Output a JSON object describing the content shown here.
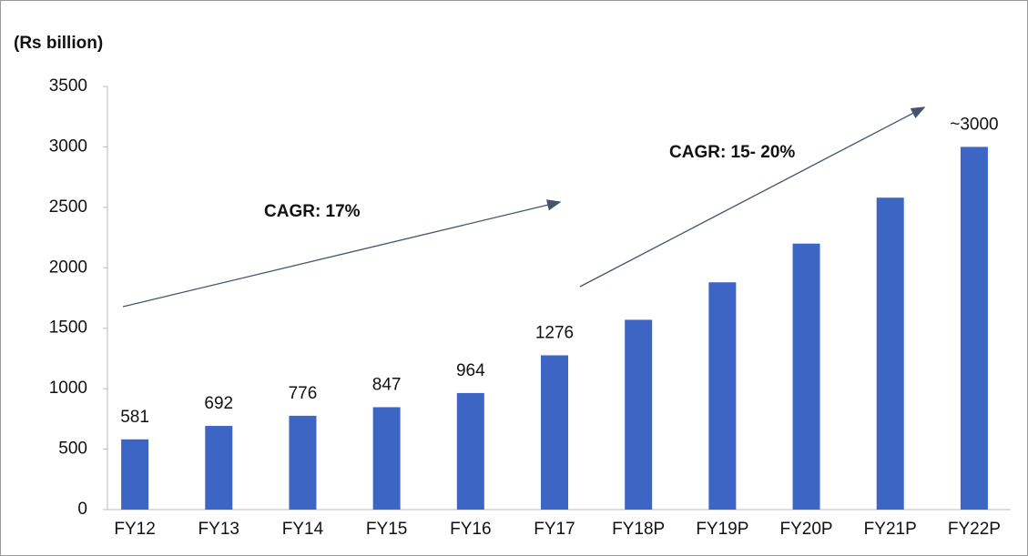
{
  "chart_data": {
    "type": "bar",
    "title": "(Rs billion)",
    "categories": [
      "FY12",
      "FY13",
      "FY14",
      "FY15",
      "FY16",
      "FY17",
      "FY18P",
      "FY19P",
      "FY20P",
      "FY21P",
      "FY22P"
    ],
    "values": [
      581,
      692,
      776,
      847,
      964,
      1276,
      1570,
      1880,
      2200,
      2580,
      3000
    ],
    "value_labels": [
      "581",
      "692",
      "776",
      "847",
      "964",
      "1276",
      null,
      null,
      null,
      null,
      "~3000"
    ],
    "color": "#3d66c4",
    "ylim": [
      0,
      3500
    ],
    "yticks": [
      0,
      500,
      1000,
      1500,
      2000,
      2500,
      3000,
      3500
    ],
    "annotations": [
      "CAGR: 17%",
      "CAGR: 15- 20%"
    ]
  }
}
